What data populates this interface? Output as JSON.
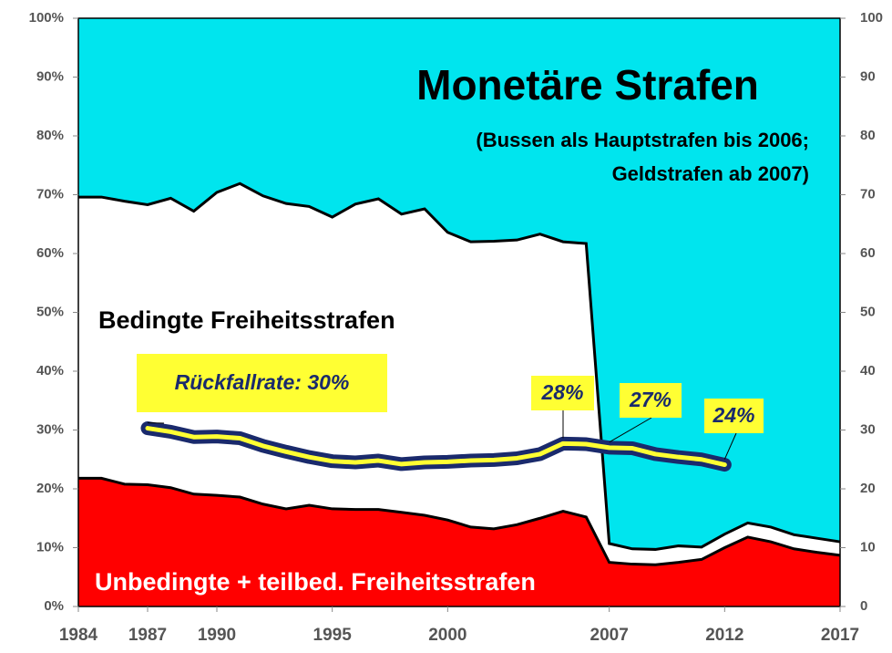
{
  "chart_data": {
    "type": "stacked_area_line",
    "subtitle": [
      "(Bussen als Hauptstrafen bis 2006;",
      "Geldstrafen ab 2007)"
    ],
    "x": [
      1984,
      1985,
      1986,
      1987,
      1988,
      1989,
      1990,
      1991,
      1992,
      1993,
      1994,
      1995,
      1996,
      1997,
      1998,
      1999,
      2000,
      2001,
      2002,
      2003,
      2004,
      2005,
      2006,
      2007,
      2008,
      2009,
      2010,
      2011,
      2012,
      2013,
      2014,
      2015,
      2016,
      2017
    ],
    "series": [
      {
        "name": "Unbedingte + teilbed. Freiheitsstrafen",
        "color": "#ff0000",
        "values": [
          21.8,
          21.8,
          20.8,
          20.7,
          20.2,
          19.1,
          18.9,
          18.6,
          17.4,
          16.6,
          17.2,
          16.6,
          16.5,
          16.5,
          16.0,
          15.5,
          14.7,
          13.5,
          13.2,
          13.9,
          15.0,
          16.2,
          15.2,
          7.5,
          7.2,
          7.1,
          7.5,
          8.0,
          10.0,
          11.8,
          11.0,
          9.8,
          9.2,
          8.7
        ]
      },
      {
        "name": "Bedingte Freiheitsstrafen",
        "color": "#ffffff",
        "values": [
          47.8,
          47.8,
          48.1,
          47.6,
          49.2,
          48.1,
          51.5,
          53.3,
          52.4,
          51.9,
          50.8,
          49.6,
          51.9,
          52.8,
          50.7,
          52.1,
          48.9,
          48.5,
          48.9,
          48.4,
          48.3,
          45.8,
          46.5,
          3.2,
          2.6,
          2.6,
          2.8,
          2.1,
          2.3,
          2.4,
          2.5,
          2.4,
          2.4,
          2.3
        ]
      },
      {
        "name": "Monetäre Strafen",
        "color": "#00e5ee",
        "values": [
          30.4,
          30.4,
          31.1,
          31.7,
          30.6,
          32.8,
          29.6,
          28.1,
          30.2,
          31.5,
          32.0,
          33.8,
          31.6,
          30.7,
          33.3,
          32.4,
          36.4,
          38.0,
          37.9,
          37.7,
          36.7,
          38.0,
          38.3,
          89.3,
          90.2,
          90.3,
          89.7,
          89.9,
          87.7,
          85.8,
          86.5,
          87.8,
          88.4,
          89.0
        ]
      },
      {
        "name": "Rückfallrate",
        "type": "line",
        "color": "#ffff33",
        "values": [
          null,
          null,
          null,
          30.3,
          29.7,
          28.8,
          28.9,
          28.6,
          27.3,
          26.3,
          25.4,
          24.7,
          24.5,
          24.8,
          24.2,
          24.5,
          24.6,
          24.8,
          24.9,
          25.2,
          25.9,
          27.7,
          27.6,
          27.0,
          26.9,
          25.9,
          25.4,
          25.0,
          24.1,
          null,
          null,
          null,
          null,
          null
        ]
      }
    ],
    "annotations": [
      "Rückfallrate: 30%",
      "28%",
      "27%",
      "24%"
    ],
    "xlim": [
      1984,
      2017
    ],
    "xticks": [
      1984,
      1987,
      1990,
      1995,
      2000,
      2007,
      2012,
      2017
    ],
    "ylim": [
      0,
      100
    ],
    "yticks": [
      {
        "value": 0,
        "label": "0%"
      },
      {
        "value": 10,
        "label": "10%"
      },
      {
        "value": 20,
        "label": "20%"
      },
      {
        "value": 30,
        "label": "30%"
      },
      {
        "value": 40,
        "label": "40%"
      },
      {
        "value": 50,
        "label": "50%"
      },
      {
        "value": 60,
        "label": "60%"
      },
      {
        "value": 70,
        "label": "70%"
      },
      {
        "value": 80,
        "label": "80%"
      },
      {
        "value": 90,
        "label": "90%"
      },
      {
        "value": 100,
        "label": "100%"
      }
    ],
    "y2lim": [
      0,
      100
    ],
    "y2ticks": [
      0,
      10,
      20,
      30,
      40,
      50,
      60,
      70,
      80,
      90,
      100
    ]
  }
}
